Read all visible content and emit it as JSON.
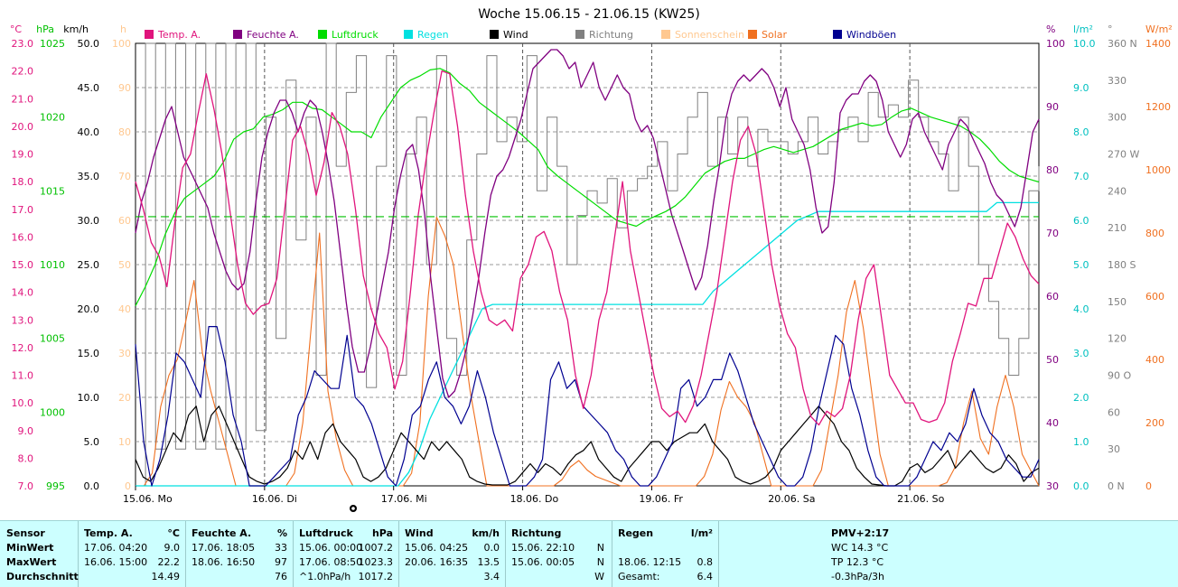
{
  "chart_data": {
    "type": "line",
    "title": "Woche 15.06.15 - 21.06.15 (KW25)",
    "x_labels": [
      "15.06. Mo",
      "16.06. Di",
      "17.06. Mi",
      "18.06. Do",
      "19.06. Fr",
      "20.06. Sa",
      "21.06. So"
    ],
    "legend": [
      {
        "name": "Temp. A.",
        "color": "#e0147c"
      },
      {
        "name": "Feuchte A.",
        "color": "#800080"
      },
      {
        "name": "Luftdruck",
        "color": "#00dd00"
      },
      {
        "name": "Regen",
        "color": "#00e0e0"
      },
      {
        "name": "Wind",
        "color": "#000000"
      },
      {
        "name": "Richtung",
        "color": "#808080"
      },
      {
        "name": "Sonnenschein",
        "color": "#ffc890"
      },
      {
        "name": "Solar",
        "color": "#f07020"
      },
      {
        "name": "Windböen",
        "color": "#000090"
      }
    ],
    "axes_left": [
      {
        "unit": "°C",
        "color": "#e0147c",
        "ticks": [
          "23.0",
          "22.0",
          "21.0",
          "20.0",
          "19.0",
          "18.0",
          "17.0",
          "16.0",
          "15.0",
          "14.0",
          "13.0",
          "12.0",
          "11.0",
          "10.0",
          "9.0",
          "8.0",
          "7.0"
        ]
      },
      {
        "unit": "hPa",
        "color": "#00c000",
        "ticks": [
          "1025",
          "1020",
          "1015",
          "1010",
          "1005",
          "1000",
          "995"
        ]
      },
      {
        "unit": "km/h",
        "color": "#000000",
        "ticks": [
          "50.0",
          "45.0",
          "40.0",
          "35.0",
          "30.0",
          "25.0",
          "20.0",
          "15.0",
          "10.0",
          "5.0",
          "0.0"
        ]
      },
      {
        "unit": "h",
        "color": "#ffc890",
        "ticks": [
          "100",
          "90",
          "80",
          "70",
          "60",
          "50",
          "40",
          "30",
          "20",
          "10",
          "0"
        ]
      }
    ],
    "axes_right": [
      {
        "unit": "%",
        "color": "#800080",
        "ticks": [
          "100",
          "90",
          "80",
          "70",
          "60",
          "50",
          "40",
          "30"
        ]
      },
      {
        "unit": "l/m²",
        "color": "#00c0c0",
        "ticks": [
          "10.0",
          "9.0",
          "8.0",
          "7.0",
          "6.0",
          "5.0",
          "4.0",
          "3.0",
          "2.0",
          "1.0",
          "0.0"
        ]
      },
      {
        "unit": "°",
        "color": "#808080",
        "ticks": [
          "360 N",
          "330",
          "300",
          "270 W",
          "240",
          "210",
          "180 S",
          "150",
          "120",
          "90 O",
          "60",
          "30",
          "0 N"
        ]
      },
      {
        "unit": "W/m²",
        "color": "#f07020",
        "ticks": [
          "1400",
          "1200",
          "1000",
          "800",
          "600",
          "400",
          "200",
          "0"
        ]
      }
    ],
    "ranges": {
      "temp": [
        7,
        23
      ],
      "pressure": [
        995,
        1025
      ],
      "wind": [
        0,
        50
      ],
      "humidity": [
        30,
        100
      ],
      "rain": [
        0,
        10
      ],
      "direction": [
        0,
        360
      ],
      "solar": [
        0,
        1400
      ]
    },
    "reference_line": {
      "series": "Luftdruck",
      "value": 1013.25
    },
    "grid": true,
    "series": {
      "temp": [
        18,
        17,
        15.8,
        15.3,
        14.2,
        16.5,
        18.5,
        19,
        20.5,
        21.9,
        20.6,
        19,
        17,
        15,
        13.6,
        13.2,
        13.5,
        13.6,
        14.5,
        17,
        19.5,
        20,
        19,
        17.5,
        18.7,
        20.5,
        20,
        19,
        17,
        14.6,
        13.4,
        12.5,
        12,
        10.5,
        11.5,
        14,
        16.8,
        18.8,
        20.5,
        22,
        21.9,
        20,
        17.5,
        15.5,
        14,
        13,
        12.8,
        13,
        12.6,
        14.5,
        15,
        16,
        16.2,
        15.5,
        14,
        13,
        11,
        9.8,
        11,
        13,
        14,
        16,
        18,
        15.5,
        14,
        12.5,
        11,
        9.8,
        9.5,
        9.7,
        9.3,
        9.9,
        11,
        12.5,
        14,
        16,
        18,
        19.5,
        20,
        19,
        17,
        15,
        13.5,
        12.5,
        12,
        10.5,
        9.5,
        9.2,
        9.7,
        9.5,
        9.8,
        11,
        13,
        14.5,
        15,
        13,
        11,
        10.5,
        10,
        10,
        9.4,
        9.3,
        9.4,
        10,
        11.5,
        12.5,
        13.6,
        13.5,
        14.5,
        14.5,
        15.5,
        16.5,
        16,
        15.2,
        14.6,
        14.3
      ],
      "humidity": [
        70,
        75,
        78,
        82,
        85,
        88,
        90,
        86,
        82,
        80,
        78,
        76,
        74,
        70,
        67,
        64,
        62,
        61,
        62,
        67,
        75,
        82,
        86,
        89,
        91,
        91,
        89,
        86,
        89,
        91,
        90,
        86,
        81,
        75,
        67,
        59,
        52,
        48,
        48,
        52,
        57,
        62,
        67,
        74,
        79,
        83,
        84,
        80,
        73,
        63,
        55,
        47,
        44,
        45,
        48,
        52,
        57,
        63,
        70,
        76,
        79,
        80,
        82,
        85,
        88,
        92,
        96,
        97,
        98,
        99,
        99,
        98,
        96,
        97,
        93,
        95,
        97,
        93,
        91,
        93,
        95,
        93,
        92,
        88,
        86,
        87,
        85,
        81,
        77,
        73,
        70,
        67,
        64,
        61,
        63,
        68,
        75,
        81,
        88,
        92,
        94,
        95,
        94,
        95,
        96,
        95,
        93,
        90,
        93,
        88,
        86,
        84,
        80,
        74,
        70,
        71,
        78,
        89,
        91,
        92,
        92,
        94,
        95,
        94,
        91,
        86,
        84,
        82,
        84,
        88,
        89,
        86,
        84,
        82,
        80,
        84,
        86,
        88,
        87,
        85,
        83,
        81,
        78,
        76,
        75,
        73,
        71,
        74,
        80,
        86,
        88
      ],
      "pressure": [
        1007.2,
        1008.5,
        1010,
        1012,
        1013.5,
        1014.5,
        1015,
        1015.5,
        1016,
        1017,
        1018.5,
        1019,
        1019.2,
        1020,
        1020.2,
        1020.5,
        1021,
        1021,
        1020.6,
        1020.5,
        1020,
        1019.5,
        1019,
        1019,
        1018.6,
        1020,
        1021,
        1022,
        1022.5,
        1022.8,
        1023.2,
        1023.3,
        1023,
        1022.3,
        1021.8,
        1021,
        1020.5,
        1020,
        1019.5,
        1019,
        1018.4,
        1017.8,
        1016.6,
        1016,
        1015.5,
        1015,
        1014.5,
        1014,
        1013.5,
        1013,
        1012.8,
        1012.6,
        1013,
        1013.3,
        1013.6,
        1014,
        1014.6,
        1015.4,
        1016.2,
        1016.6,
        1017,
        1017.2,
        1017.2,
        1017.5,
        1017.8,
        1018,
        1017.8,
        1017.6,
        1017.8,
        1018,
        1018.4,
        1018.8,
        1019.2,
        1019.4,
        1019.6,
        1019.4,
        1019.5,
        1020,
        1020.4,
        1020.6,
        1020.3,
        1020,
        1019.8,
        1019.6,
        1019.4,
        1019,
        1018.5,
        1017.8,
        1017,
        1016.4,
        1016,
        1015.8,
        1015.6
      ],
      "rain": [
        0,
        0,
        0,
        0,
        0,
        0,
        0,
        0,
        0,
        0,
        0,
        0,
        0,
        0,
        0,
        0,
        0,
        0,
        0,
        0,
        0,
        0,
        0,
        0,
        0,
        0,
        0.3,
        0.8,
        1.5,
        2.0,
        2.5,
        3.0,
        3.5,
        4.0,
        4.1,
        4.1,
        4.1,
        4.1,
        4.1,
        4.1,
        4.1,
        4.1,
        4.1,
        4.1,
        4.1,
        4.1,
        4.1,
        4.1,
        4.1,
        4.1,
        4.1,
        4.1,
        4.1,
        4.1,
        4.1,
        4.4,
        4.6,
        4.8,
        5.0,
        5.2,
        5.4,
        5.6,
        5.8,
        6.0,
        6.1,
        6.2,
        6.2,
        6.2,
        6.2,
        6.2,
        6.2,
        6.2,
        6.2,
        6.2,
        6.2,
        6.2,
        6.2,
        6.2,
        6.2,
        6.2,
        6.2,
        6.2,
        6.4,
        6.4,
        6.4,
        6.4,
        6.4
      ],
      "wind": [
        3,
        1,
        0.5,
        2,
        4,
        6,
        5,
        8,
        9,
        5,
        8,
        9,
        7,
        5,
        3,
        1,
        0.5,
        0.2,
        0.5,
        1,
        2,
        4,
        3,
        5,
        3,
        6,
        7,
        5,
        4,
        3,
        1,
        0.5,
        1,
        2,
        4,
        6,
        5,
        4,
        3,
        5,
        4,
        5,
        4,
        3,
        1,
        0.5,
        0.2,
        0.1,
        0.1,
        0.1,
        0.5,
        1.5,
        2.5,
        1.5,
        2.5,
        2,
        1.2,
        2.5,
        3.5,
        4,
        5,
        3,
        2,
        1,
        0.5,
        2,
        3,
        4,
        5,
        5,
        4,
        5,
        5.5,
        6,
        6,
        7,
        5,
        4,
        3,
        1,
        0.5,
        0.2,
        0.5,
        1,
        2,
        4,
        5,
        6,
        7,
        8,
        9,
        8,
        7,
        5,
        4,
        2,
        1,
        0.2,
        0.1,
        0,
        0,
        0.5,
        2,
        2.5,
        1.5,
        2,
        3,
        4,
        2,
        3,
        4,
        3,
        2,
        1.5,
        2,
        3.5,
        2.5,
        0.5,
        1.5,
        2
      ],
      "gusts": [
        16,
        5,
        0,
        3,
        8,
        15,
        14,
        12,
        10,
        18,
        18,
        14,
        8,
        5,
        0,
        0,
        0,
        1,
        2,
        3,
        8,
        10,
        13,
        12,
        11,
        11,
        17,
        10,
        9,
        7,
        4,
        1,
        0,
        3,
        8,
        9,
        12,
        14,
        10,
        9,
        7,
        9,
        13,
        10,
        6,
        3,
        0,
        0,
        0,
        1,
        3,
        12,
        14,
        11,
        12,
        9,
        8,
        7,
        6,
        4,
        3,
        1,
        0,
        0,
        1,
        3,
        5,
        11,
        12,
        9,
        10,
        12,
        12,
        15,
        13,
        10,
        7,
        5,
        3,
        1,
        0,
        0,
        1,
        4,
        9,
        13,
        17,
        16,
        11,
        8,
        4,
        1,
        0,
        0,
        0,
        0,
        1,
        3,
        5,
        4,
        6,
        5,
        7,
        11,
        8,
        6,
        5,
        3,
        2,
        1,
        1,
        3
      ],
      "solar": [
        0,
        0,
        40,
        250,
        350,
        400,
        520,
        650,
        420,
        300,
        200,
        100,
        0,
        0,
        0,
        0,
        0,
        0,
        0,
        40,
        200,
        500,
        800,
        300,
        150,
        50,
        0,
        0,
        0,
        0,
        0,
        0,
        0,
        40,
        200,
        600,
        850,
        790,
        700,
        500,
        300,
        150,
        0,
        0,
        0,
        0,
        0,
        0,
        0,
        0,
        0,
        20,
        60,
        80,
        50,
        30,
        20,
        10,
        0,
        0,
        0,
        0,
        0,
        0,
        0,
        0,
        0,
        0,
        30,
        100,
        240,
        330,
        280,
        250,
        200,
        100,
        0,
        0,
        0,
        0,
        0,
        0,
        50,
        200,
        350,
        550,
        650,
        500,
        300,
        100,
        0,
        0,
        0,
        0,
        0,
        0,
        0,
        10,
        60,
        200,
        300,
        150,
        100,
        250,
        350,
        250,
        100,
        50,
        0
      ],
      "direction": [
        0,
        360,
        30,
        360,
        30,
        360,
        30,
        360,
        30,
        360,
        30,
        360,
        45,
        300,
        120,
        330,
        200,
        300,
        90,
        360,
        260,
        320,
        350,
        80,
        260,
        350,
        90,
        270,
        300,
        180,
        350,
        120,
        90,
        200,
        270,
        350,
        280,
        300,
        280,
        350,
        240,
        300,
        260,
        180,
        220,
        240,
        230,
        250,
        210,
        240,
        250,
        260,
        280,
        240,
        270,
        300,
        320,
        260,
        300,
        270,
        300,
        260,
        290,
        280,
        280,
        270,
        280,
        300,
        270,
        280,
        290,
        300,
        280,
        320,
        300,
        310,
        300,
        330,
        300,
        280,
        270,
        240,
        300,
        260,
        180,
        150,
        120,
        90,
        120,
        240,
        260
      ]
    }
  },
  "stats": {
    "headers": {
      "sensor": "Sensor",
      "temp": "Temp. A.",
      "temp_unit": "°C",
      "hum": "Feuchte A.",
      "hum_unit": "%",
      "pres": "Luftdruck",
      "pres_unit": "hPa",
      "wind": "Wind",
      "wind_unit": "km/h",
      "dir": "Richtung",
      "rain": "Regen",
      "rain_unit": "l/m²",
      "pmv": "PMV+2:17"
    },
    "row_labels": {
      "min": "MinWert",
      "max": "MaxWert",
      "avg": "Durchschnitt"
    },
    "temp": {
      "min_time": "17.06.  04:20",
      "min": "9.0",
      "max_time": "16.06.  15:00",
      "max": "22.2",
      "avg": "14.49"
    },
    "hum": {
      "min_time": "17.06.  18:05",
      "min": "33",
      "max_time": "18.06.  16:50",
      "max": "97",
      "avg": "76"
    },
    "pres": {
      "min_time": "15.06.  00:00",
      "min": "1007.2",
      "max_time": "17.06.  08:50",
      "max": "1023.3",
      "trend": "^1.0hPa/h",
      "avg": "1017.2"
    },
    "wind": {
      "min_time": "15.06.  04:25",
      "min": "0.0",
      "max_time": "20.06.  16:35",
      "max": "13.5",
      "avg": "3.4"
    },
    "dir": {
      "min_time": "15.06.  22:10",
      "min": "N",
      "max_time": "15.06.  00:05",
      "max": "N",
      "avg": "W"
    },
    "rain": {
      "max_time": "18.06.  12:15",
      "max": "0.8",
      "total_label": "Gesamt:",
      "total": "6.4"
    },
    "extra": {
      "wc": "WC 14.3 °C",
      "tp": "TP 12.3 °C",
      "trend": "-0.3hPa/3h"
    }
  }
}
